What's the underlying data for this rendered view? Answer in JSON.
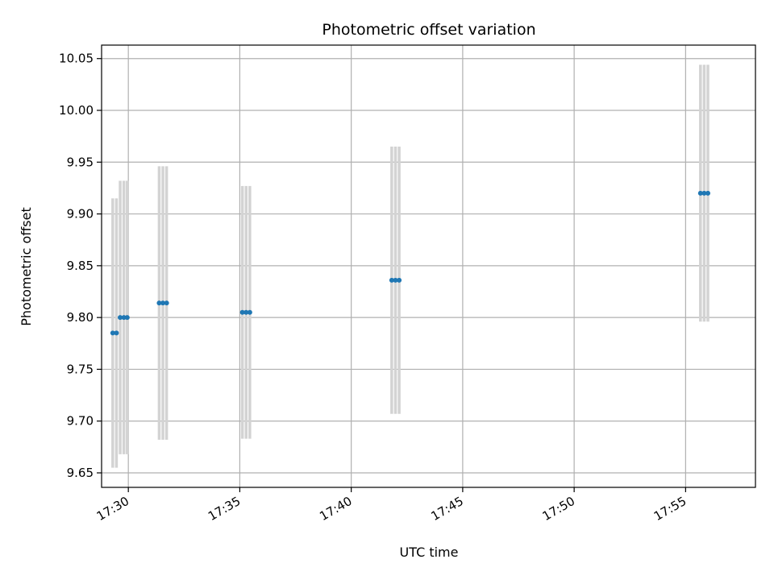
{
  "chart_data": {
    "type": "scatter",
    "title": "Photometric offset variation",
    "xlabel": "UTC time",
    "ylabel": "Photometric offset",
    "x_tick_labels": [
      "17:30",
      "17:35",
      "17:40",
      "17:45",
      "17:50",
      "17:55"
    ],
    "xlim": [
      "17:28:48",
      "17:58:08"
    ],
    "ylim": [
      9.636,
      10.063
    ],
    "y_ticks": [
      9.65,
      9.7,
      9.75,
      9.8,
      9.85,
      9.9,
      9.95,
      10.0,
      10.05
    ],
    "y_tick_labels": [
      "9.65",
      "9.70",
      "9.75",
      "9.80",
      "9.85",
      "9.90",
      "9.95",
      "10.00",
      "10.05"
    ],
    "grid": true,
    "colors": {
      "points": "#1f77b4",
      "errorbars": "#d3d3d3",
      "grid": "#b0b0b0"
    },
    "series": [
      {
        "points": [
          {
            "time": "17:29:18",
            "y": 9.785,
            "yerr": 0.13
          },
          {
            "time": "17:29:28",
            "y": 9.785,
            "yerr": 0.13
          },
          {
            "time": "17:29:38",
            "y": 9.8,
            "yerr": 0.132
          },
          {
            "time": "17:29:48",
            "y": 9.8,
            "yerr": 0.132
          },
          {
            "time": "17:29:57",
            "y": 9.8,
            "yerr": 0.132
          },
          {
            "time": "17:31:23",
            "y": 9.814,
            "yerr": 0.132
          },
          {
            "time": "17:31:33",
            "y": 9.814,
            "yerr": 0.132
          },
          {
            "time": "17:31:43",
            "y": 9.814,
            "yerr": 0.132
          },
          {
            "time": "17:35:07",
            "y": 9.805,
            "yerr": 0.122
          },
          {
            "time": "17:35:17",
            "y": 9.805,
            "yerr": 0.122
          },
          {
            "time": "17:35:27",
            "y": 9.805,
            "yerr": 0.122
          },
          {
            "time": "17:41:49",
            "y": 9.836,
            "yerr": 0.129
          },
          {
            "time": "17:41:59",
            "y": 9.836,
            "yerr": 0.129
          },
          {
            "time": "17:42:09",
            "y": 9.836,
            "yerr": 0.129
          },
          {
            "time": "17:55:40",
            "y": 9.92,
            "yerr": 0.124
          },
          {
            "time": "17:55:50",
            "y": 9.92,
            "yerr": 0.124
          },
          {
            "time": "17:56:00",
            "y": 9.92,
            "yerr": 0.124
          }
        ]
      }
    ]
  }
}
